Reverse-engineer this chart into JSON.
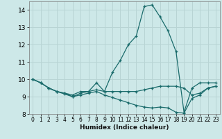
{
  "xlabel": "Humidex (Indice chaleur)",
  "background_color": "#cde8e8",
  "grid_color": "#b8d4d4",
  "line_color": "#1a6b6b",
  "xlim": [
    -0.5,
    23.5
  ],
  "ylim": [
    8,
    14.5
  ],
  "yticks": [
    8,
    9,
    10,
    11,
    12,
    13,
    14
  ],
  "xticks": [
    0,
    1,
    2,
    3,
    4,
    5,
    6,
    7,
    8,
    9,
    10,
    11,
    12,
    13,
    14,
    15,
    16,
    17,
    18,
    19,
    20,
    21,
    22,
    23
  ],
  "series": [
    {
      "x": [
        0,
        1,
        2,
        3,
        4,
        5,
        6,
        7,
        8,
        9,
        10,
        11,
        12,
        13,
        14,
        15,
        16,
        17,
        18,
        19,
        20,
        21,
        22,
        23
      ],
      "y": [
        10.0,
        9.8,
        9.5,
        9.3,
        9.2,
        9.1,
        9.3,
        9.3,
        9.8,
        9.3,
        10.4,
        11.1,
        12.0,
        12.5,
        14.2,
        14.3,
        13.6,
        12.8,
        11.6,
        8.1,
        9.5,
        9.8,
        9.8,
        9.8
      ]
    },
    {
      "x": [
        0,
        1,
        2,
        3,
        4,
        5,
        6,
        7,
        8,
        9,
        10,
        11,
        12,
        13,
        14,
        15,
        16,
        17,
        18,
        19,
        20,
        21,
        22,
        23
      ],
      "y": [
        10.0,
        9.8,
        9.5,
        9.3,
        9.2,
        9.0,
        9.2,
        9.3,
        9.4,
        9.3,
        9.3,
        9.3,
        9.3,
        9.3,
        9.4,
        9.5,
        9.6,
        9.6,
        9.6,
        9.5,
        9.1,
        9.2,
        9.5,
        9.6
      ]
    },
    {
      "x": [
        0,
        1,
        2,
        3,
        4,
        5,
        6,
        7,
        8,
        9,
        10,
        11,
        12,
        13,
        14,
        15,
        16,
        17,
        18,
        19,
        20,
        21,
        22,
        23
      ],
      "y": [
        10.0,
        9.8,
        9.5,
        9.3,
        9.15,
        9.0,
        9.1,
        9.2,
        9.3,
        9.1,
        8.95,
        8.8,
        8.65,
        8.5,
        8.4,
        8.35,
        8.4,
        8.35,
        8.1,
        8.05,
        8.9,
        9.1,
        9.5,
        9.6
      ]
    }
  ]
}
